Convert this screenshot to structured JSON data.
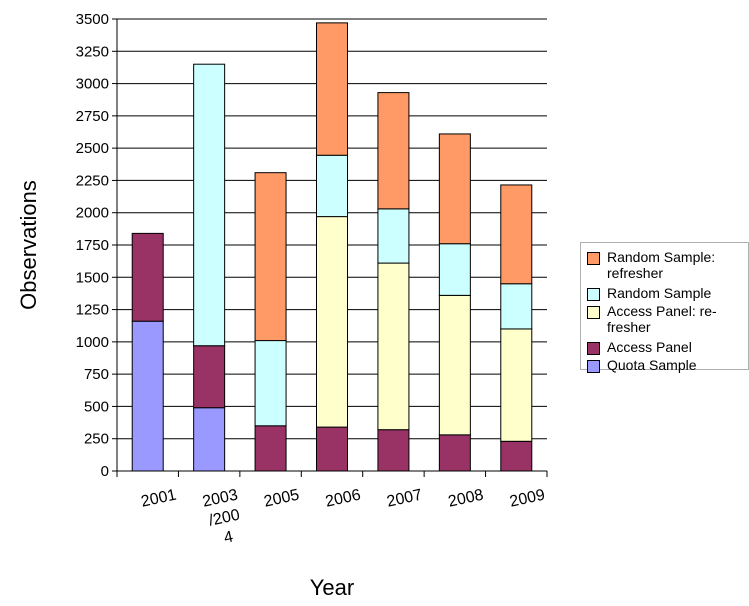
{
  "chart_data": {
    "type": "bar",
    "stacked": true,
    "categories": [
      "2001",
      "2003\n/200\n4",
      "2005",
      "2006",
      "2007",
      "2008",
      "2009"
    ],
    "series": [
      {
        "name": "Quota Sample",
        "color": "#9999ff",
        "values": [
          1160,
          490,
          0,
          0,
          0,
          0,
          0
        ]
      },
      {
        "name": "Access Panel",
        "color": "#993366",
        "values": [
          680,
          480,
          350,
          340,
          320,
          280,
          230
        ]
      },
      {
        "name": "Access Panel: re-\nfresher",
        "color": "#ffffcc",
        "values": [
          0,
          0,
          0,
          1630,
          1290,
          1080,
          870
        ]
      },
      {
        "name": "Random Sample",
        "color": "#ccffff",
        "values": [
          0,
          2180,
          660,
          475,
          420,
          400,
          350
        ]
      },
      {
        "name": "Random Sample:\nrefresher",
        "color": "#ff9966",
        "values": [
          0,
          0,
          1300,
          1025,
          900,
          850,
          765
        ]
      }
    ],
    "xlabel": "Year",
    "ylabel": "Observations",
    "ylim": [
      0,
      3500
    ],
    "yticks": [
      0,
      250,
      500,
      750,
      1000,
      1250,
      1500,
      1750,
      2000,
      2250,
      2500,
      2750,
      3000,
      3250,
      3500
    ],
    "grid": true,
    "legend_position": "right"
  }
}
